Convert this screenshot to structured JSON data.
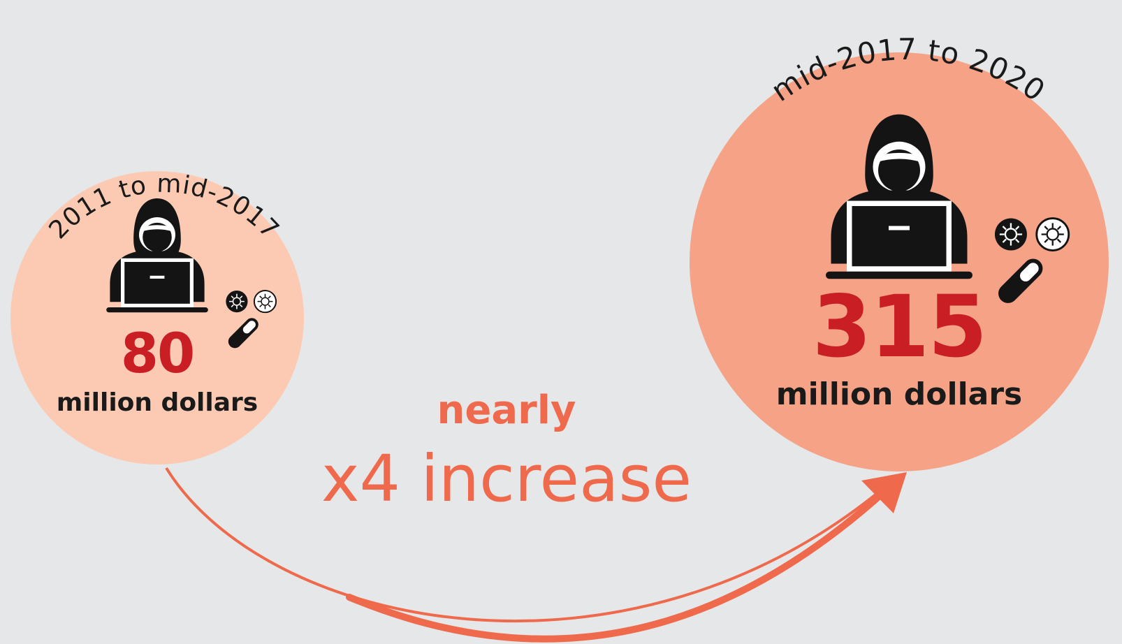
{
  "period_before": {
    "label": "2011 to mid-2017",
    "amount": "80",
    "unit": "million dollars"
  },
  "period_after": {
    "label": "mid-2017 to 2020",
    "amount": "315",
    "unit": "million dollars"
  },
  "change": {
    "qualifier": "nearly",
    "text": "x4 increase"
  },
  "colors": {
    "background": "#e6e7e8",
    "circle_before": "#fccab3",
    "circle_after": "#f5a286",
    "accent": "#ef6a4c",
    "number": "#c81e24",
    "ink": "#1a1a1a"
  },
  "icons": [
    "hacker-icon",
    "virus-icon",
    "pill-icon",
    "curved-arrow-icon"
  ]
}
